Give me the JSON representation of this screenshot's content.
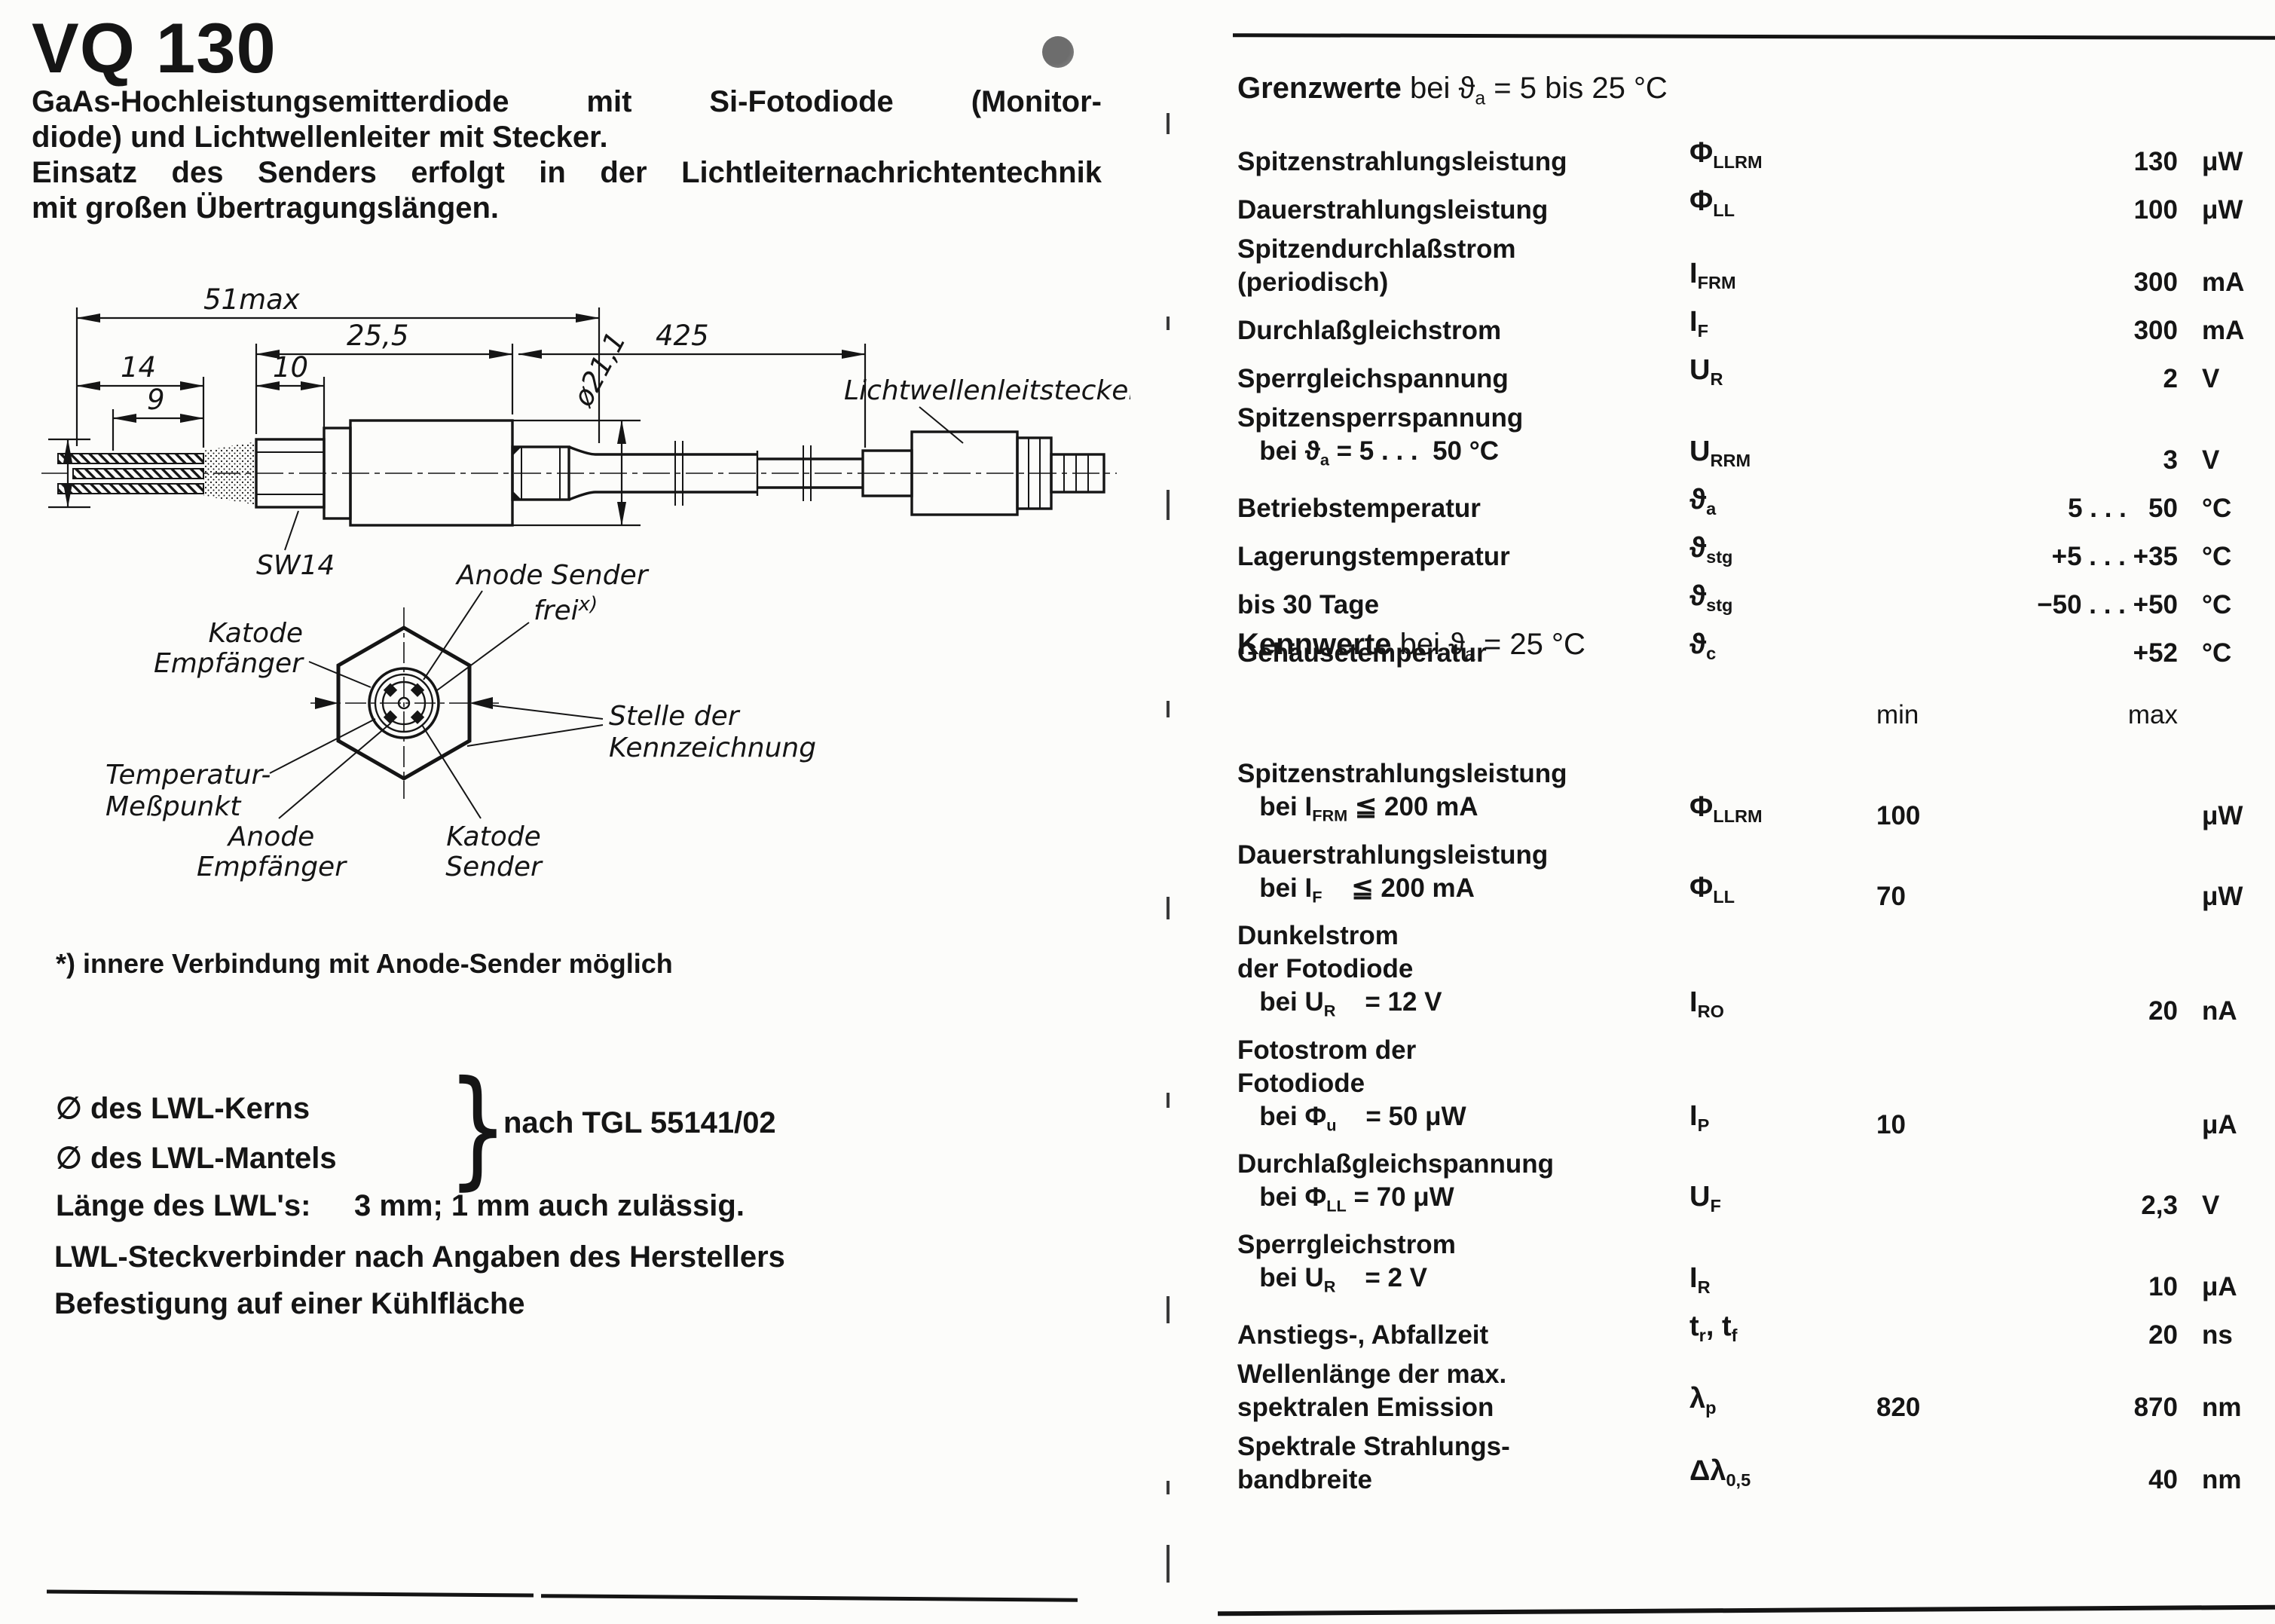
{
  "page": {
    "title": "VQ 130",
    "intro": [
      {
        "t": "GaAs-Hochleistungsemitterdiode mit Si-Fotodiode (Monitor-",
        "justify": true
      },
      {
        "t": "diode) und Lichtwellenleiter mit Stecker.",
        "justify": false
      },
      {
        "t": "Einsatz des Senders erfolgt in der Lichtleiternachrichtentechnik",
        "justify": true
      },
      {
        "t": "mit großen Übertragungslängen.",
        "justify": false
      }
    ],
    "accent_dot_color": "#6d6d6d",
    "ink_color": "#151515"
  },
  "drawing": {
    "dims": {
      "total": "51max",
      "pkg": "25,5",
      "fiber": "425",
      "d14": "14",
      "d10": "10",
      "d9": "9",
      "dia": "ø21,1"
    },
    "labels": {
      "connector": "Lichtwellenleitstecker",
      "sw": "SW14",
      "katode_empf_1": "Katode",
      "katode_empf_2": "Empfänger",
      "anode_sender": "Anode Sender",
      "frei_base": "frei",
      "frei_sup": "x)",
      "stelle_1": "Stelle der",
      "stelle_2": "Kennzeichnung",
      "temp_1": "Temperatur-",
      "temp_2": "Meßpunkt",
      "anode": "Anode",
      "empfaenger": "Empfänger",
      "katode": "Katode",
      "sender": "Sender"
    }
  },
  "footnote": "*) innere Verbindung mit Anode-Sender möglich",
  "lwl": {
    "kern": "∅ des LWL-Kerns",
    "mantel": "∅ des LWL-Mantels",
    "brace": "}",
    "nach": "nach TGL 55141/02",
    "laenge_label": "Länge des LWL's:",
    "laenge_value": "3 mm; 1 mm auch zulässig.",
    "steck": "LWL-Steckverbinder nach Angaben des Herstellers",
    "befestigung": "Befestigung auf einer Kühlfläche"
  },
  "grenzwerte": {
    "heading": [
      {
        "t": "Grenzwerte",
        "b": true
      },
      {
        "t": " bei "
      },
      {
        "t": "ϑ"
      },
      {
        "t": "a",
        "sub": true
      },
      {
        "t": " = 5 bis 25 °C"
      }
    ],
    "rows": [
      {
        "label": [
          [
            {
              "t": "Spitzenstrahlungsleistung"
            }
          ]
        ],
        "sym": [
          {
            "t": "Φ"
          },
          {
            "t": "LLRM",
            "sub": true
          }
        ],
        "value": "130",
        "unit": "μW"
      },
      {
        "label": [
          [
            {
              "t": "Dauerstrahlungsleistung"
            }
          ]
        ],
        "sym": [
          {
            "t": "Φ"
          },
          {
            "t": "LL",
            "sub": true
          }
        ],
        "value": "100",
        "unit": "μW"
      },
      {
        "label": [
          [
            {
              "t": "Spitzendurchlaßstrom"
            }
          ],
          [
            {
              "t": "(periodisch)"
            }
          ]
        ],
        "sym": [
          {
            "t": "I"
          },
          {
            "t": "FRM",
            "sub": true
          }
        ],
        "value": "300",
        "unit": "mA"
      },
      {
        "label": [
          [
            {
              "t": "Durchlaßgleichstrom"
            }
          ]
        ],
        "sym": [
          {
            "t": "I"
          },
          {
            "t": "F",
            "sub": true
          }
        ],
        "value": "300",
        "unit": "mA"
      },
      {
        "label": [
          [
            {
              "t": "Sperrgleichspannung"
            }
          ]
        ],
        "sym": [
          {
            "t": "U"
          },
          {
            "t": "R",
            "sub": true
          }
        ],
        "value": "2",
        "unit": "V"
      },
      {
        "label": [
          [
            {
              "t": "Spitzensperrspannung"
            }
          ],
          [
            {
              "t": "   bei "
            },
            {
              "t": "ϑ"
            },
            {
              "t": "a",
              "sub": true
            },
            {
              "t": " = 5 . . .  50 °C"
            }
          ]
        ],
        "sym": [
          {
            "t": "U"
          },
          {
            "t": "RRM",
            "sub": true
          }
        ],
        "value": "3",
        "unit": "V"
      },
      {
        "label": [
          [
            {
              "t": "Betriebstemperatur"
            }
          ]
        ],
        "sym": [
          {
            "t": "ϑ"
          },
          {
            "t": "a",
            "sub": true
          }
        ],
        "value": "5 . . .   50",
        "unit": "°C"
      },
      {
        "label": [
          [
            {
              "t": "Lagerungstemperatur"
            }
          ]
        ],
        "sym": [
          {
            "t": "ϑ"
          },
          {
            "t": "stg",
            "sub": true
          }
        ],
        "value": "+5 . . . +35",
        "unit": "°C"
      },
      {
        "label": [
          [
            {
              "t": "bis 30 Tage"
            }
          ]
        ],
        "sym": [
          {
            "t": "ϑ"
          },
          {
            "t": "stg",
            "sub": true
          }
        ],
        "value": "−50 . . . +50",
        "unit": "°C"
      },
      {
        "label": [
          [
            {
              "t": "Gehäusetemperatur"
            }
          ]
        ],
        "sym": [
          {
            "t": "ϑ"
          },
          {
            "t": "c",
            "sub": true
          }
        ],
        "value": "+52",
        "unit": "°C"
      }
    ]
  },
  "kennwerte": {
    "heading": [
      {
        "t": "Kennwerte",
        "b": true
      },
      {
        "t": " bei "
      },
      {
        "t": "ϑ"
      },
      {
        "t": "a",
        "sub": true
      },
      {
        "t": " = 25 °C"
      }
    ],
    "col_min": "min",
    "col_max": "max",
    "rows": [
      {
        "label": [
          [
            {
              "t": "Spitzenstrahlungsleistung"
            }
          ],
          [
            {
              "t": "   bei I"
            },
            {
              "t": "FRM",
              "sub": true
            },
            {
              "t": " ≦ 200 mA"
            }
          ]
        ],
        "sym": [
          {
            "t": "Φ"
          },
          {
            "t": "LLRM",
            "sub": true
          }
        ],
        "min": "100",
        "max": "",
        "unit": "μW"
      },
      {
        "label": [
          [
            {
              "t": "Dauerstrahlungsleistung"
            }
          ],
          [
            {
              "t": "   bei I"
            },
            {
              "t": "F",
              "sub": true
            },
            {
              "t": "    ≦ 200 mA"
            }
          ]
        ],
        "sym": [
          {
            "t": "Φ"
          },
          {
            "t": "LL",
            "sub": true
          }
        ],
        "min": "70",
        "max": "",
        "unit": "μW"
      },
      {
        "label": [
          [
            {
              "t": "Dunkelstrom"
            }
          ],
          [
            {
              "t": "der Fotodiode"
            }
          ],
          [
            {
              "t": "   bei U"
            },
            {
              "t": "R",
              "sub": true
            },
            {
              "t": "    = 12 V"
            }
          ]
        ],
        "sym": [
          {
            "t": "I"
          },
          {
            "t": "RO",
            "sub": true
          }
        ],
        "min": "",
        "max": "20",
        "unit": "nA"
      },
      {
        "label": [
          [
            {
              "t": "Fotostrom der"
            }
          ],
          [
            {
              "t": "Fotodiode"
            }
          ],
          [
            {
              "t": "   bei Φ"
            },
            {
              "t": "u",
              "sub": true
            },
            {
              "t": "    = 50 μW"
            }
          ]
        ],
        "sym": [
          {
            "t": "I"
          },
          {
            "t": "P",
            "sub": true
          }
        ],
        "min": "10",
        "max": "",
        "unit": "μA"
      },
      {
        "label": [
          [
            {
              "t": "Durchlaßgleichspannung"
            }
          ],
          [
            {
              "t": "   bei Φ"
            },
            {
              "t": "LL",
              "sub": true
            },
            {
              "t": " = 70 μW"
            }
          ]
        ],
        "sym": [
          {
            "t": "U"
          },
          {
            "t": "F",
            "sub": true
          }
        ],
        "min": "",
        "max": "2,3",
        "unit": "V"
      },
      {
        "label": [
          [
            {
              "t": "Sperrgleichstrom"
            }
          ],
          [
            {
              "t": "   bei U"
            },
            {
              "t": "R",
              "sub": true
            },
            {
              "t": "    = 2 V"
            }
          ]
        ],
        "sym": [
          {
            "t": "I"
          },
          {
            "t": "R",
            "sub": true
          }
        ],
        "min": "",
        "max": "10",
        "unit": "μA"
      },
      {
        "label": [
          [
            {
              "t": "Anstiegs-, Abfallzeit"
            }
          ]
        ],
        "sym": [
          {
            "t": "t"
          },
          {
            "t": "r",
            "sub": true
          },
          {
            "t": ", t"
          },
          {
            "t": "f",
            "sub": true
          }
        ],
        "min": "",
        "max": "20",
        "unit": "ns"
      },
      {
        "label": [
          [
            {
              "t": "Wellenlänge der max."
            }
          ],
          [
            {
              "t": "spektralen Emission"
            }
          ]
        ],
        "sym": [
          {
            "t": "λ"
          },
          {
            "t": "p",
            "sub": true
          }
        ],
        "min": "820",
        "max": "870",
        "unit": "nm"
      },
      {
        "label": [
          [
            {
              "t": "Spektrale Strahlungs-"
            }
          ],
          [
            {
              "t": "bandbreite"
            }
          ]
        ],
        "sym": [
          {
            "t": "Δλ"
          },
          {
            "t": "0,5",
            "sub": true
          }
        ],
        "min": "",
        "max": "40",
        "unit": "nm"
      }
    ]
  }
}
